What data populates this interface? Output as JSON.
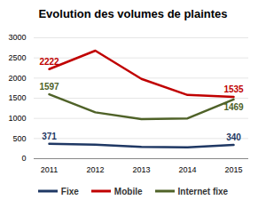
{
  "chart_data": {
    "type": "line",
    "title": "Evolution des volumes de plaintes",
    "categories": [
      "2011",
      "2012",
      "2013",
      "2014",
      "2015"
    ],
    "series": [
      {
        "name": "Fixe",
        "color": "#1f3864",
        "values": [
          371,
          350,
          290,
          280,
          340
        ],
        "value_labels": [
          "371",
          null,
          null,
          null,
          "340"
        ]
      },
      {
        "name": "Mobile",
        "color": "#c00000",
        "values": [
          2222,
          2680,
          1980,
          1580,
          1535
        ],
        "value_labels": [
          "2222",
          null,
          null,
          null,
          "1535"
        ]
      },
      {
        "name": "Internet fixe",
        "color": "#4f6228",
        "values": [
          1597,
          1150,
          980,
          1000,
          1469
        ],
        "value_labels": [
          "1597",
          null,
          null,
          null,
          "1469"
        ]
      }
    ],
    "ylim": [
      0,
      3000
    ],
    "yticks": [
      0,
      500,
      1000,
      1500,
      2000,
      2500,
      3000
    ],
    "grid": true,
    "legend": "bottom",
    "data_labels": true
  }
}
